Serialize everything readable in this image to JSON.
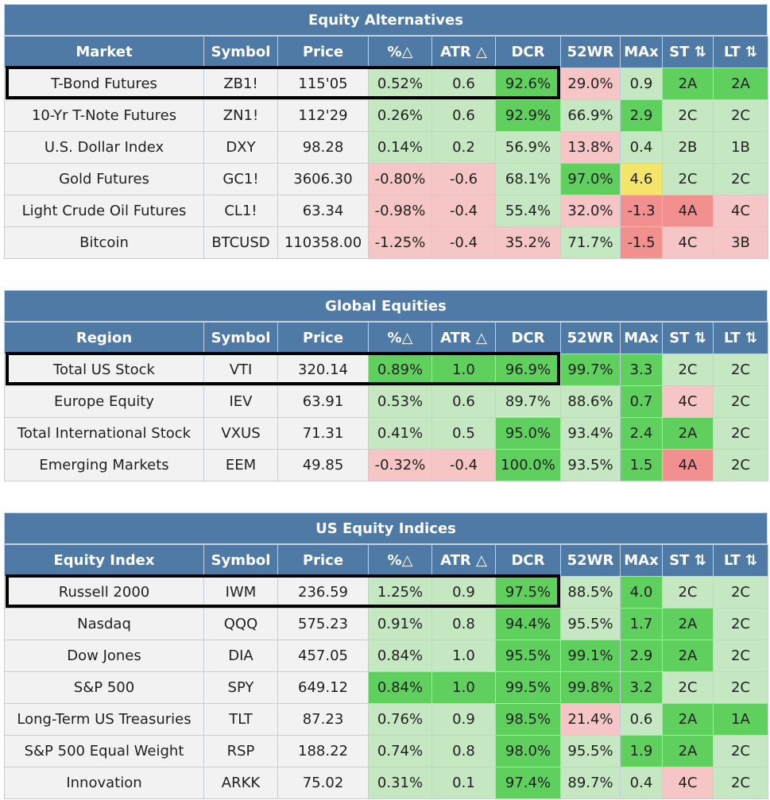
{
  "sections": [
    {
      "title": "Equity Alternatives",
      "headers": [
        "Market",
        "Symbol",
        "Price",
        "%△",
        "ATR △",
        "DCR",
        "52WR",
        "MAx",
        "ST ⇅",
        "LT ⇅"
      ],
      "rows": [
        {
          "name": "T-Bond Futures",
          "symbol": "ZB1!",
          "price": "115'05",
          "pct": "0.52%",
          "atr": "0.6",
          "dcr": "92.6%",
          "wr": "29.0%",
          "max": "0.9",
          "st": "2A",
          "lt": "2A",
          "colors": [
            "n",
            "n",
            "n",
            "g1",
            "g1",
            "g2",
            "r1",
            "g1",
            "g2",
            "g2"
          ]
        },
        {
          "name": "10-Yr T-Note Futures",
          "symbol": "ZN1!",
          "price": "112'29",
          "pct": "0.26%",
          "atr": "0.6",
          "dcr": "92.9%",
          "wr": "66.9%",
          "max": "2.9",
          "st": "2C",
          "lt": "2C",
          "colors": [
            "n",
            "n",
            "n",
            "g1",
            "g1",
            "g2",
            "g1",
            "g2",
            "g1",
            "g1"
          ]
        },
        {
          "name": "U.S. Dollar Index",
          "symbol": "DXY",
          "price": "98.28",
          "pct": "0.14%",
          "atr": "0.2",
          "dcr": "56.9%",
          "wr": "13.8%",
          "max": "0.4",
          "st": "2B",
          "lt": "1B",
          "colors": [
            "n",
            "n",
            "n",
            "g1",
            "g1",
            "g1",
            "r1",
            "g1",
            "g1",
            "g1"
          ]
        },
        {
          "name": "Gold Futures",
          "symbol": "GC1!",
          "price": "3606.30",
          "pct": "-0.80%",
          "atr": "-0.6",
          "dcr": "68.1%",
          "wr": "97.0%",
          "max": "4.6",
          "st": "2C",
          "lt": "2C",
          "colors": [
            "n",
            "n",
            "n",
            "r1",
            "r1",
            "g1",
            "g2",
            "y1",
            "g1",
            "g1"
          ]
        },
        {
          "name": "Light Crude Oil Futures",
          "symbol": "CL1!",
          "price": "63.34",
          "pct": "-0.98%",
          "atr": "-0.4",
          "dcr": "55.4%",
          "wr": "32.0%",
          "max": "-1.3",
          "st": "4A",
          "lt": "4C",
          "colors": [
            "n",
            "n",
            "n",
            "r1",
            "r1",
            "g1",
            "r1",
            "r2",
            "r2",
            "r1"
          ]
        },
        {
          "name": "Bitcoin",
          "symbol": "BTCUSD",
          "price": "110358.00",
          "pct": "-1.25%",
          "atr": "-0.4",
          "dcr": "35.2%",
          "wr": "71.7%",
          "max": "-1.5",
          "st": "4C",
          "lt": "3B",
          "colors": [
            "n",
            "n",
            "n",
            "r1",
            "r1",
            "r1",
            "g1",
            "r2",
            "r1",
            "r1"
          ]
        }
      ]
    },
    {
      "title": "Global Equities",
      "headers": [
        "Region",
        "Symbol",
        "Price",
        "%△",
        "ATR △",
        "DCR",
        "52WR",
        "MAx",
        "ST ⇅",
        "LT ⇅"
      ],
      "rows": [
        {
          "name": "Total US Stock",
          "symbol": "VTI",
          "price": "320.14",
          "pct": "0.89%",
          "atr": "1.0",
          "dcr": "96.9%",
          "wr": "99.7%",
          "max": "3.3",
          "st": "2C",
          "lt": "2C",
          "colors": [
            "n",
            "n",
            "n",
            "g2",
            "g2",
            "g2",
            "g2",
            "g2",
            "g1",
            "g1"
          ]
        },
        {
          "name": "Europe Equity",
          "symbol": "IEV",
          "price": "63.91",
          "pct": "0.53%",
          "atr": "0.6",
          "dcr": "89.7%",
          "wr": "88.6%",
          "max": "0.7",
          "st": "4C",
          "lt": "2C",
          "colors": [
            "n",
            "n",
            "n",
            "g1",
            "g1",
            "g1",
            "g1",
            "g2",
            "r1",
            "g1"
          ]
        },
        {
          "name": "Total International Stock",
          "symbol": "VXUS",
          "price": "71.31",
          "pct": "0.41%",
          "atr": "0.5",
          "dcr": "95.0%",
          "wr": "93.4%",
          "max": "2.4",
          "st": "2A",
          "lt": "2C",
          "colors": [
            "n",
            "n",
            "n",
            "g1",
            "g1",
            "g2",
            "g1",
            "g2",
            "g2",
            "g1"
          ]
        },
        {
          "name": "Emerging Markets",
          "symbol": "EEM",
          "price": "49.85",
          "pct": "-0.32%",
          "atr": "-0.4",
          "dcr": "100.0%",
          "wr": "93.5%",
          "max": "1.5",
          "st": "4A",
          "lt": "2C",
          "colors": [
            "n",
            "n",
            "n",
            "r1",
            "r1",
            "g2",
            "g1",
            "g2",
            "r2",
            "g1"
          ]
        }
      ]
    },
    {
      "title": "US Equity Indices",
      "headers": [
        "Equity Index",
        "Symbol",
        "Price",
        "%△",
        "ATR △",
        "DCR",
        "52WR",
        "MAx",
        "ST ⇅",
        "LT ⇅"
      ],
      "rows": [
        {
          "name": "Russell 2000",
          "symbol": "IWM",
          "price": "236.59",
          "pct": "1.25%",
          "atr": "0.9",
          "dcr": "97.5%",
          "wr": "88.5%",
          "max": "4.0",
          "st": "2C",
          "lt": "2C",
          "colors": [
            "n",
            "n",
            "n",
            "g1",
            "g1",
            "g2",
            "g1",
            "g2",
            "g1",
            "g1"
          ]
        },
        {
          "name": "Nasdaq",
          "symbol": "QQQ",
          "price": "575.23",
          "pct": "0.91%",
          "atr": "0.8",
          "dcr": "94.4%",
          "wr": "95.5%",
          "max": "1.7",
          "st": "2A",
          "lt": "2C",
          "colors": [
            "n",
            "n",
            "n",
            "g1",
            "g1",
            "g2",
            "g1",
            "g2",
            "g2",
            "g1"
          ]
        },
        {
          "name": "Dow Jones",
          "symbol": "DIA",
          "price": "457.05",
          "pct": "0.84%",
          "atr": "1.0",
          "dcr": "95.5%",
          "wr": "99.1%",
          "max": "2.9",
          "st": "2A",
          "lt": "2C",
          "colors": [
            "n",
            "n",
            "n",
            "g1",
            "g1",
            "g2",
            "g2",
            "g2",
            "g2",
            "g1"
          ]
        },
        {
          "name": "S&P 500",
          "symbol": "SPY",
          "price": "649.12",
          "pct": "0.84%",
          "atr": "1.0",
          "dcr": "99.5%",
          "wr": "99.8%",
          "max": "3.2",
          "st": "2C",
          "lt": "2C",
          "colors": [
            "n",
            "n",
            "n",
            "g2",
            "g2",
            "g2",
            "g2",
            "g2",
            "g1",
            "g1"
          ]
        },
        {
          "name": "Long-Term US Treasuries",
          "symbol": "TLT",
          "price": "87.23",
          "pct": "0.76%",
          "atr": "0.9",
          "dcr": "98.5%",
          "wr": "21.4%",
          "max": "0.6",
          "st": "2A",
          "lt": "1A",
          "colors": [
            "n",
            "n",
            "n",
            "g1",
            "g1",
            "g2",
            "r1",
            "g1",
            "g2",
            "g2"
          ]
        },
        {
          "name": "S&P 500 Equal Weight",
          "symbol": "RSP",
          "price": "188.22",
          "pct": "0.74%",
          "atr": "0.8",
          "dcr": "98.0%",
          "wr": "95.5%",
          "max": "1.9",
          "st": "2A",
          "lt": "2C",
          "colors": [
            "n",
            "n",
            "n",
            "g1",
            "g1",
            "g2",
            "g1",
            "g2",
            "g2",
            "g1"
          ]
        },
        {
          "name": "Innovation",
          "symbol": "ARKK",
          "price": "75.02",
          "pct": "0.31%",
          "atr": "0.1",
          "dcr": "97.4%",
          "wr": "89.7%",
          "max": "0.4",
          "st": "4C",
          "lt": "2C",
          "colors": [
            "n",
            "n",
            "n",
            "g1",
            "g1",
            "g2",
            "g1",
            "g1",
            "r1",
            "g1"
          ]
        }
      ]
    }
  ]
}
